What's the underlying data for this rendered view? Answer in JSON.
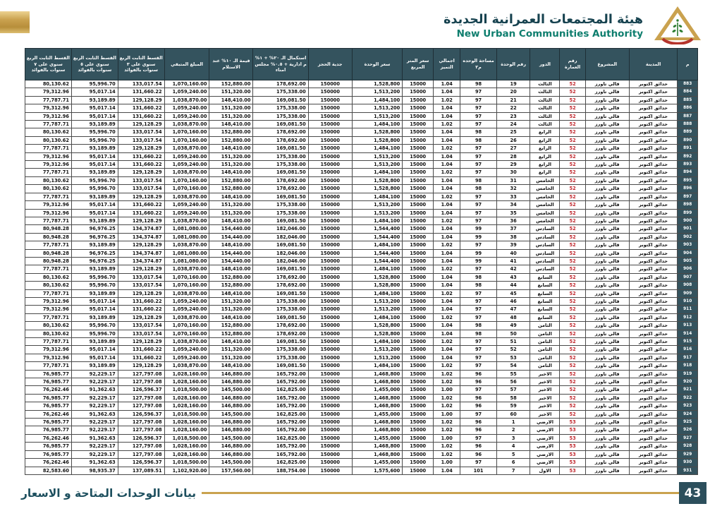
{
  "brand": {
    "title_ar": "هيئة المجتمعات العمرانية الجديدة",
    "title_en": "New Urban Communities Authority"
  },
  "footer": {
    "label": "بيانات الوحدات المتاحة و الاسعار",
    "page_number": "43"
  },
  "colors": {
    "header_bg": "#34535e",
    "accent_gold": "#caa24f",
    "building_red": "#c0272d",
    "title_dark": "#16424f",
    "title_teal": "#0e7e6e"
  },
  "table": {
    "column_keys": [
      "serial",
      "city",
      "project",
      "building-no",
      "floor",
      "unit-no",
      "unit-area",
      "premium-total",
      "price-per-m2",
      "unit-price",
      "booking-deposit",
      "completion-20pct",
      "value-10pct-delivery",
      "remaining-amount",
      "installment-3y",
      "installment-5y",
      "installment-7y"
    ],
    "columns": [
      "م",
      "المدينة",
      "المشروع",
      "رقم العمارة",
      "الدور",
      "رقم الوحدة",
      "مساحة الوحده م٢",
      "اجمالي التميز",
      "سعر المتر المربع",
      "سعر الوحدة",
      "جدية الحجز",
      "استكمال الـ ٢٠% + ١% م ادارية + ٠.٥% مجلس امناء",
      "قيمة الـ ١٠% عند الاستلام",
      "المبلغ المتبقي",
      "القسط الثابت الربع سنوي على ٣ سنوات بالفوائد",
      "القسط الثابت الربع سنوي على ٥ سنوات بالفوائد",
      "القسط الثابت الربع سنوي على ٧ سنوات بالفوائد"
    ],
    "rows": [
      [
        "883",
        "حدائق اكتوبر",
        "فالي تاورز",
        "52",
        "الثالث",
        "19",
        "98",
        "1.04",
        "15000",
        "1,528,800",
        "150000",
        "178,692.00",
        "152,880.00",
        "1,070,160.00",
        "133,017.54",
        "95,996.70",
        "80,130.62"
      ],
      [
        "884",
        "حدائق اكتوبر",
        "فالي تاورز",
        "52",
        "الثالث",
        "20",
        "97",
        "1.04",
        "15000",
        "1,513,200",
        "150000",
        "175,338.00",
        "151,320.00",
        "1,059,240.00",
        "131,660.22",
        "95,017.14",
        "79,312.96"
      ],
      [
        "885",
        "حدائق اكتوبر",
        "فالي تاورز",
        "52",
        "الثالث",
        "21",
        "97",
        "1.02",
        "15000",
        "1,484,100",
        "150000",
        "169,081.50",
        "148,410.00",
        "1,038,870.00",
        "129,128.29",
        "93,189.89",
        "77,787.71"
      ],
      [
        "886",
        "حدائق اكتوبر",
        "فالي تاورز",
        "52",
        "الثالث",
        "22",
        "97",
        "1.04",
        "15000",
        "1,513,200",
        "150000",
        "175,338.00",
        "151,320.00",
        "1,059,240.00",
        "131,660.22",
        "95,017.14",
        "79,312.96"
      ],
      [
        "887",
        "حدائق اكتوبر",
        "فالي تاورز",
        "52",
        "الثالث",
        "23",
        "97",
        "1.04",
        "15000",
        "1,513,200",
        "150000",
        "175,338.00",
        "151,320.00",
        "1,059,240.00",
        "131,660.22",
        "95,017.14",
        "79,312.96"
      ],
      [
        "888",
        "حدائق اكتوبر",
        "فالي تاورز",
        "52",
        "الثالث",
        "24",
        "97",
        "1.02",
        "15000",
        "1,484,100",
        "150000",
        "169,081.50",
        "148,410.00",
        "1,038,870.00",
        "129,128.29",
        "93,189.89",
        "77,787.71"
      ],
      [
        "889",
        "حدائق اكتوبر",
        "فالي تاورز",
        "52",
        "الرابع",
        "25",
        "98",
        "1.04",
        "15000",
        "1,528,800",
        "150000",
        "178,692.00",
        "152,880.00",
        "1,070,160.00",
        "133,017.54",
        "95,996.70",
        "80,130.62"
      ],
      [
        "890",
        "حدائق اكتوبر",
        "فالي تاورز",
        "52",
        "الرابع",
        "26",
        "98",
        "1.04",
        "15000",
        "1,528,800",
        "150000",
        "178,692.00",
        "152,880.00",
        "1,070,160.00",
        "133,017.54",
        "95,996.70",
        "80,130.62"
      ],
      [
        "891",
        "حدائق اكتوبر",
        "فالي تاورز",
        "52",
        "الرابع",
        "27",
        "97",
        "1.02",
        "15000",
        "1,484,100",
        "150000",
        "169,081.50",
        "148,410.00",
        "1,038,870.00",
        "129,128.29",
        "93,189.89",
        "77,787.71"
      ],
      [
        "892",
        "حدائق اكتوبر",
        "فالي تاورز",
        "52",
        "الرابع",
        "28",
        "97",
        "1.04",
        "15000",
        "1,513,200",
        "150000",
        "175,338.00",
        "151,320.00",
        "1,059,240.00",
        "131,660.22",
        "95,017.14",
        "79,312.96"
      ],
      [
        "893",
        "حدائق اكتوبر",
        "فالي تاورز",
        "52",
        "الرابع",
        "29",
        "97",
        "1.04",
        "15000",
        "1,513,200",
        "150000",
        "175,338.00",
        "151,320.00",
        "1,059,240.00",
        "131,660.22",
        "95,017.14",
        "79,312.96"
      ],
      [
        "894",
        "حدائق اكتوبر",
        "فالي تاورز",
        "52",
        "الرابع",
        "30",
        "97",
        "1.02",
        "15000",
        "1,484,100",
        "150000",
        "169,081.50",
        "148,410.00",
        "1,038,870.00",
        "129,128.29",
        "93,189.89",
        "77,787.71"
      ],
      [
        "895",
        "حدائق اكتوبر",
        "فالي تاورز",
        "52",
        "الخامس",
        "31",
        "98",
        "1.04",
        "15000",
        "1,528,800",
        "150000",
        "178,692.00",
        "152,880.00",
        "1,070,160.00",
        "133,017.54",
        "95,996.70",
        "80,130.62"
      ],
      [
        "896",
        "حدائق اكتوبر",
        "فالي تاورز",
        "52",
        "الخامس",
        "32",
        "98",
        "1.04",
        "15000",
        "1,528,800",
        "150000",
        "178,692.00",
        "152,880.00",
        "1,070,160.00",
        "133,017.54",
        "95,996.70",
        "80,130.62"
      ],
      [
        "897",
        "حدائق اكتوبر",
        "فالي تاورز",
        "52",
        "الخامس",
        "33",
        "97",
        "1.02",
        "15000",
        "1,484,100",
        "150000",
        "169,081.50",
        "148,410.00",
        "1,038,870.00",
        "129,128.29",
        "93,189.89",
        "77,787.71"
      ],
      [
        "898",
        "حدائق اكتوبر",
        "فالي تاورز",
        "52",
        "الخامس",
        "34",
        "97",
        "1.04",
        "15000",
        "1,513,200",
        "150000",
        "175,338.00",
        "151,320.00",
        "1,059,240.00",
        "131,660.22",
        "95,017.14",
        "79,312.96"
      ],
      [
        "899",
        "حدائق اكتوبر",
        "فالي تاورز",
        "52",
        "الخامس",
        "35",
        "97",
        "1.04",
        "15000",
        "1,513,200",
        "150000",
        "175,338.00",
        "151,320.00",
        "1,059,240.00",
        "131,660.22",
        "95,017.14",
        "79,312.96"
      ],
      [
        "900",
        "حدائق اكتوبر",
        "فالي تاورز",
        "52",
        "الخامس",
        "36",
        "97",
        "1.02",
        "15000",
        "1,484,100",
        "150000",
        "169,081.50",
        "148,410.00",
        "1,038,870.00",
        "129,128.29",
        "93,189.89",
        "77,787.71"
      ],
      [
        "901",
        "حدائق اكتوبر",
        "فالي تاورز",
        "52",
        "السادس",
        "37",
        "99",
        "1.04",
        "15000",
        "1,544,400",
        "150000",
        "182,046.00",
        "154,440.00",
        "1,081,080.00",
        "134,374.87",
        "96,976.25",
        "80,948.28"
      ],
      [
        "902",
        "حدائق اكتوبر",
        "فالي تاورز",
        "52",
        "السادس",
        "38",
        "99",
        "1.04",
        "15000",
        "1,544,400",
        "150000",
        "182,046.00",
        "154,440.00",
        "1,081,080.00",
        "134,374.87",
        "96,976.25",
        "80,948.28"
      ],
      [
        "903",
        "حدائق اكتوبر",
        "فالي تاورز",
        "52",
        "السادس",
        "39",
        "97",
        "1.02",
        "15000",
        "1,484,100",
        "150000",
        "169,081.50",
        "148,410.00",
        "1,038,870.00",
        "129,128.29",
        "93,189.89",
        "77,787.71"
      ],
      [
        "904",
        "حدائق اكتوبر",
        "فالي تاورز",
        "52",
        "السادس",
        "40",
        "99",
        "1.04",
        "15000",
        "1,544,400",
        "150000",
        "182,046.00",
        "154,440.00",
        "1,081,080.00",
        "134,374.87",
        "96,976.25",
        "80,948.28"
      ],
      [
        "905",
        "حدائق اكتوبر",
        "فالي تاورز",
        "52",
        "السادس",
        "41",
        "99",
        "1.04",
        "15000",
        "1,544,400",
        "150000",
        "182,046.00",
        "154,440.00",
        "1,081,080.00",
        "134,374.87",
        "96,976.25",
        "80,948.28"
      ],
      [
        "906",
        "حدائق اكتوبر",
        "فالي تاورز",
        "52",
        "السادس",
        "42",
        "97",
        "1.02",
        "15000",
        "1,484,100",
        "150000",
        "169,081.50",
        "148,410.00",
        "1,038,870.00",
        "129,128.29",
        "93,189.89",
        "77,787.71"
      ],
      [
        "907",
        "حدائق اكتوبر",
        "فالي تاورز",
        "52",
        "السابع",
        "43",
        "98",
        "1.04",
        "15000",
        "1,528,800",
        "150000",
        "178,692.00",
        "152,880.00",
        "1,070,160.00",
        "133,017.54",
        "95,996.70",
        "80,130.62"
      ],
      [
        "908",
        "حدائق اكتوبر",
        "فالي تاورز",
        "52",
        "السابع",
        "44",
        "98",
        "1.04",
        "15000",
        "1,528,800",
        "150000",
        "178,692.00",
        "152,880.00",
        "1,070,160.00",
        "133,017.54",
        "95,996.70",
        "80,130.62"
      ],
      [
        "909",
        "حدائق اكتوبر",
        "فالي تاورز",
        "52",
        "السابع",
        "45",
        "97",
        "1.02",
        "15000",
        "1,484,100",
        "150000",
        "169,081.50",
        "148,410.00",
        "1,038,870.00",
        "129,128.29",
        "93,189.89",
        "77,787.71"
      ],
      [
        "910",
        "حدائق اكتوبر",
        "فالي تاورز",
        "52",
        "السابع",
        "46",
        "97",
        "1.04",
        "15000",
        "1,513,200",
        "150000",
        "175,338.00",
        "151,320.00",
        "1,059,240.00",
        "131,660.22",
        "95,017.14",
        "79,312.96"
      ],
      [
        "911",
        "حدائق اكتوبر",
        "فالي تاورز",
        "52",
        "السابع",
        "47",
        "97",
        "1.04",
        "15000",
        "1,513,200",
        "150000",
        "175,338.00",
        "151,320.00",
        "1,059,240.00",
        "131,660.22",
        "95,017.14",
        "79,312.96"
      ],
      [
        "912",
        "حدائق اكتوبر",
        "فالي تاورز",
        "52",
        "السابع",
        "48",
        "97",
        "1.02",
        "15000",
        "1,484,100",
        "150000",
        "169,081.50",
        "148,410.00",
        "1,038,870.00",
        "129,128.29",
        "93,189.89",
        "77,787.71"
      ],
      [
        "913",
        "حدائق اكتوبر",
        "فالي تاورز",
        "52",
        "الثامن",
        "49",
        "98",
        "1.04",
        "15000",
        "1,528,800",
        "150000",
        "178,692.00",
        "152,880.00",
        "1,070,160.00",
        "133,017.54",
        "95,996.70",
        "80,130.62"
      ],
      [
        "914",
        "حدائق اكتوبر",
        "فالي تاورز",
        "52",
        "الثامن",
        "50",
        "98",
        "1.04",
        "15000",
        "1,528,800",
        "150000",
        "178,692.00",
        "152,880.00",
        "1,070,160.00",
        "133,017.54",
        "95,996.70",
        "80,130.62"
      ],
      [
        "915",
        "حدائق اكتوبر",
        "فالي تاورز",
        "52",
        "الثامن",
        "51",
        "97",
        "1.02",
        "15000",
        "1,484,100",
        "150000",
        "169,081.50",
        "148,410.00",
        "1,038,870.00",
        "129,128.29",
        "93,189.89",
        "77,787.71"
      ],
      [
        "916",
        "حدائق اكتوبر",
        "فالي تاورز",
        "52",
        "الثامن",
        "52",
        "97",
        "1.04",
        "15000",
        "1,513,200",
        "150000",
        "175,338.00",
        "151,320.00",
        "1,059,240.00",
        "131,660.22",
        "95,017.14",
        "79,312.96"
      ],
      [
        "917",
        "حدائق اكتوبر",
        "فالي تاورز",
        "52",
        "الثامن",
        "53",
        "97",
        "1.04",
        "15000",
        "1,513,200",
        "150000",
        "175,338.00",
        "151,320.00",
        "1,059,240.00",
        "131,660.22",
        "95,017.14",
        "79,312.96"
      ],
      [
        "918",
        "حدائق اكتوبر",
        "فالي تاورز",
        "52",
        "الثامن",
        "54",
        "97",
        "1.02",
        "15000",
        "1,484,100",
        "150000",
        "169,081.50",
        "148,410.00",
        "1,038,870.00",
        "129,128.29",
        "93,189.89",
        "77,787.71"
      ],
      [
        "919",
        "حدائق اكتوبر",
        "فالي تاورز",
        "52",
        "الاخير",
        "55",
        "96",
        "1.02",
        "15000",
        "1,468,800",
        "150000",
        "165,792.00",
        "146,880.00",
        "1,028,160.00",
        "127,797.08",
        "92,229.17",
        "76,985.77"
      ],
      [
        "920",
        "حدائق اكتوبر",
        "فالي تاورز",
        "52",
        "الاخير",
        "56",
        "96",
        "1.02",
        "15000",
        "1,468,800",
        "150000",
        "165,792.00",
        "146,880.00",
        "1,028,160.00",
        "127,797.08",
        "92,229.17",
        "76,985.77"
      ],
      [
        "921",
        "حدائق اكتوبر",
        "فالي تاورز",
        "52",
        "الاخير",
        "57",
        "97",
        "1.00",
        "15000",
        "1,455,000",
        "150000",
        "162,825.00",
        "145,500.00",
        "1,018,500.00",
        "126,596.37",
        "91,362.63",
        "76,262.46"
      ],
      [
        "922",
        "حدائق اكتوبر",
        "فالي تاورز",
        "52",
        "الاخير",
        "58",
        "96",
        "1.02",
        "15000",
        "1,468,800",
        "150000",
        "165,792.00",
        "146,880.00",
        "1,028,160.00",
        "127,797.08",
        "92,229.17",
        "76,985.77"
      ],
      [
        "923",
        "حدائق اكتوبر",
        "فالي تاورز",
        "52",
        "الاخير",
        "59",
        "96",
        "1.02",
        "15000",
        "1,468,800",
        "150000",
        "165,792.00",
        "146,880.00",
        "1,028,160.00",
        "127,797.08",
        "92,229.17",
        "76,985.77"
      ],
      [
        "924",
        "حدائق اكتوبر",
        "فالي تاورز",
        "52",
        "الاخير",
        "60",
        "97",
        "1.00",
        "15000",
        "1,455,000",
        "150000",
        "162,825.00",
        "145,500.00",
        "1,018,500.00",
        "126,596.37",
        "91,362.63",
        "76,262.46"
      ],
      [
        "925",
        "حدائق اكتوبر",
        "فالي تاورز",
        "53",
        "الارضي",
        "1",
        "96",
        "1.02",
        "15000",
        "1,468,800",
        "150000",
        "165,792.00",
        "146,880.00",
        "1,028,160.00",
        "127,797.08",
        "92,229.17",
        "76,985.77"
      ],
      [
        "926",
        "حدائق اكتوبر",
        "فالي تاورز",
        "53",
        "الارضي",
        "2",
        "96",
        "1.02",
        "15000",
        "1,468,800",
        "150000",
        "165,792.00",
        "146,880.00",
        "1,028,160.00",
        "127,797.08",
        "92,229.17",
        "76,985.77"
      ],
      [
        "927",
        "حدائق اكتوبر",
        "فالي تاورز",
        "53",
        "الارضي",
        "3",
        "97",
        "1.00",
        "15000",
        "1,455,000",
        "150000",
        "162,825.00",
        "145,500.00",
        "1,018,500.00",
        "126,596.37",
        "91,362.63",
        "76,262.46"
      ],
      [
        "928",
        "حدائق اكتوبر",
        "فالي تاورز",
        "53",
        "الارضي",
        "4",
        "96",
        "1.02",
        "15000",
        "1,468,800",
        "150000",
        "165,792.00",
        "146,880.00",
        "1,028,160.00",
        "127,797.08",
        "92,229.17",
        "76,985.77"
      ],
      [
        "929",
        "حدائق اكتوبر",
        "فالي تاورز",
        "53",
        "الارضي",
        "5",
        "96",
        "1.02",
        "15000",
        "1,468,800",
        "150000",
        "165,792.00",
        "146,880.00",
        "1,028,160.00",
        "127,797.08",
        "92,229.17",
        "76,985.77"
      ],
      [
        "930",
        "حدائق اكتوبر",
        "فالي تاورز",
        "53",
        "الارضي",
        "6",
        "97",
        "1.00",
        "15000",
        "1,455,000",
        "150000",
        "162,825.00",
        "145,500.00",
        "1,018,500.00",
        "126,596.37",
        "91,362.63",
        "76,262.46"
      ],
      [
        "931",
        "حدائق اكتوبر",
        "فالي تاورز",
        "53",
        "الاول",
        "7",
        "101",
        "1.04",
        "15000",
        "1,575,600",
        "150000",
        "188,754.00",
        "157,560.00",
        "1,102,920.00",
        "137,089.51",
        "98,935.37",
        "82,583.60"
      ]
    ]
  }
}
